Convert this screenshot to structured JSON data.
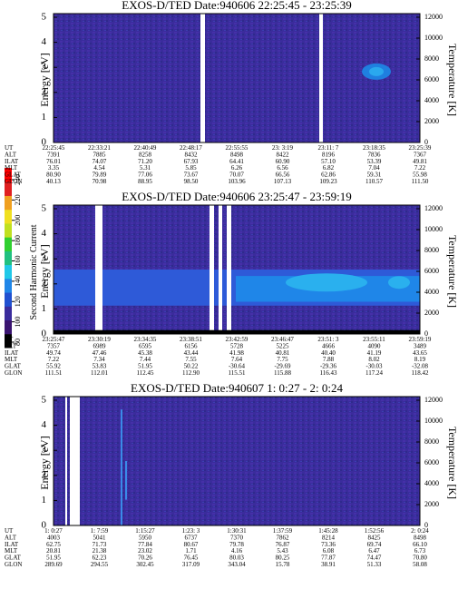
{
  "chart_data": [
    {
      "type": "spectrogram",
      "title": "EXOS-D/TED   Date:940606  22:25:45 - 23:25:39",
      "ylabel": "Energy [eV]",
      "y2label": "Temperature [K]",
      "ylim": [
        0,
        5
      ],
      "yticks": [
        0,
        1,
        2,
        3,
        4,
        5
      ],
      "y2lim": [
        0,
        12000
      ],
      "y2ticks": [
        0,
        2000,
        4000,
        6000,
        8000,
        10000,
        12000
      ],
      "orbit": {
        "row_labels": [
          "UT",
          "ALT",
          "ILAT",
          "MLT",
          "GLAT",
          "GLON"
        ],
        "rows": [
          [
            "22:25:45",
            "22:33:21",
            "22:40:49",
            "22:48:17",
            "22:55:55",
            "23: 3:19",
            "23:11: 7",
            "23:18:35",
            "23:25:39"
          ],
          [
            "7391",
            "7885",
            "8258",
            "8432",
            "8498",
            "8422",
            "8196",
            "7836",
            "7367"
          ],
          [
            "76.01",
            "74.07",
            "71.20",
            "67.93",
            "64.41",
            "60.90",
            "57.10",
            "53.39",
            "49.81"
          ],
          [
            "3.35",
            "4.54",
            "5.31",
            "5.85",
            "6.26",
            "6.56",
            "6.82",
            "7.04",
            "7.22"
          ],
          [
            "80.90",
            "79.89",
            "77.06",
            "73.67",
            "70.07",
            "66.56",
            "62.86",
            "59.31",
            "55.98"
          ],
          [
            "40.13",
            "70.98",
            "88.95",
            "98.50",
            "103.96",
            "107.13",
            "109.23",
            "110.57",
            "111.50"
          ]
        ]
      }
    },
    {
      "type": "spectrogram",
      "title": "EXOS-D/TED   Date:940606  23:25:47 - 23:59:19",
      "ylabel": "Energy [eV]",
      "y2label": "Temperature [K]",
      "ylim": [
        0,
        5
      ],
      "yticks": [
        0,
        1,
        2,
        3,
        4,
        5
      ],
      "y2lim": [
        0,
        12000
      ],
      "y2ticks": [
        0,
        2000,
        4000,
        6000,
        8000,
        10000,
        12000
      ],
      "colorbar": {
        "label": "Second Harmonic Current",
        "clim": [
          80,
          240
        ],
        "ticks": [
          240,
          220,
          200,
          180,
          160,
          140,
          120,
          100,
          80
        ]
      },
      "orbit": {
        "row_labels": [
          "UT",
          "ALT",
          "ILAT",
          "MLT",
          "GLAT",
          "GLON"
        ],
        "rows": [
          [
            "23:25:47",
            "23:30:19",
            "23:34:35",
            "23:38:51",
            "23:42:59",
            "23:46:47",
            "23:51: 3",
            "23:55:11",
            "23:59:19"
          ],
          [
            "7357",
            "6989",
            "6595",
            "6156",
            "5728",
            "5225",
            "4666",
            "4090",
            "3489"
          ],
          [
            "49.74",
            "47.46",
            "45.38",
            "43.44",
            "41.98",
            "40.81",
            "40.40",
            "41.19",
            "43.65"
          ],
          [
            "7.22",
            "7.34",
            "7.44",
            "7.55",
            "7.64",
            "7.75",
            "7.88",
            "8.02",
            "8.19"
          ],
          [
            "55.92",
            "53.83",
            "51.95",
            "50.22",
            "-30.64",
            "-29.69",
            "-29.36",
            "-30.03",
            "-32.08"
          ],
          [
            "111.51",
            "112.01",
            "112.45",
            "112.90",
            "115.51",
            "115.88",
            "116.43",
            "117.24",
            "118.42"
          ]
        ]
      }
    },
    {
      "type": "spectrogram",
      "title": "EXOS-D/TED   Date:940607  1: 0:27 - 2: 0:24",
      "ylabel": "Energy [eV]",
      "y2label": "Temperature [K]",
      "ylim": [
        0,
        5
      ],
      "yticks": [
        0,
        1,
        2,
        3,
        4,
        5
      ],
      "y2lim": [
        0,
        12000
      ],
      "y2ticks": [
        0,
        2000,
        4000,
        6000,
        8000,
        10000,
        12000
      ],
      "orbit": {
        "row_labels": [
          "UT",
          "ALT",
          "ILAT",
          "MLT",
          "GLAT",
          "GLON"
        ],
        "rows": [
          [
            "1: 0:27",
            "1: 7:59",
            "1:15:27",
            "1:23: 3",
            "1:30:31",
            "1:37:59",
            "1:45:28",
            "1:52:56",
            "2: 0:24"
          ],
          [
            "4003",
            "5041",
            "5950",
            "6737",
            "7370",
            "7862",
            "8214",
            "8425",
            "8498"
          ],
          [
            "62.75",
            "71.73",
            "77.84",
            "80.67",
            "79.78",
            "76.87",
            "73.36",
            "69.74",
            "66.10"
          ],
          [
            "20.81",
            "21.38",
            "23.02",
            "1.71",
            "4.16",
            "5.43",
            "6.08",
            "6.47",
            "6.73"
          ],
          [
            "51.95",
            "62.23",
            "70.26",
            "76.45",
            "80.03",
            "80.25",
            "77.87",
            "74.47",
            "70.80"
          ],
          [
            "289.69",
            "294.55",
            "302.45",
            "317.09",
            "343.04",
            "15.78",
            "38.91",
            "51.33",
            "58.08"
          ]
        ]
      }
    }
  ]
}
